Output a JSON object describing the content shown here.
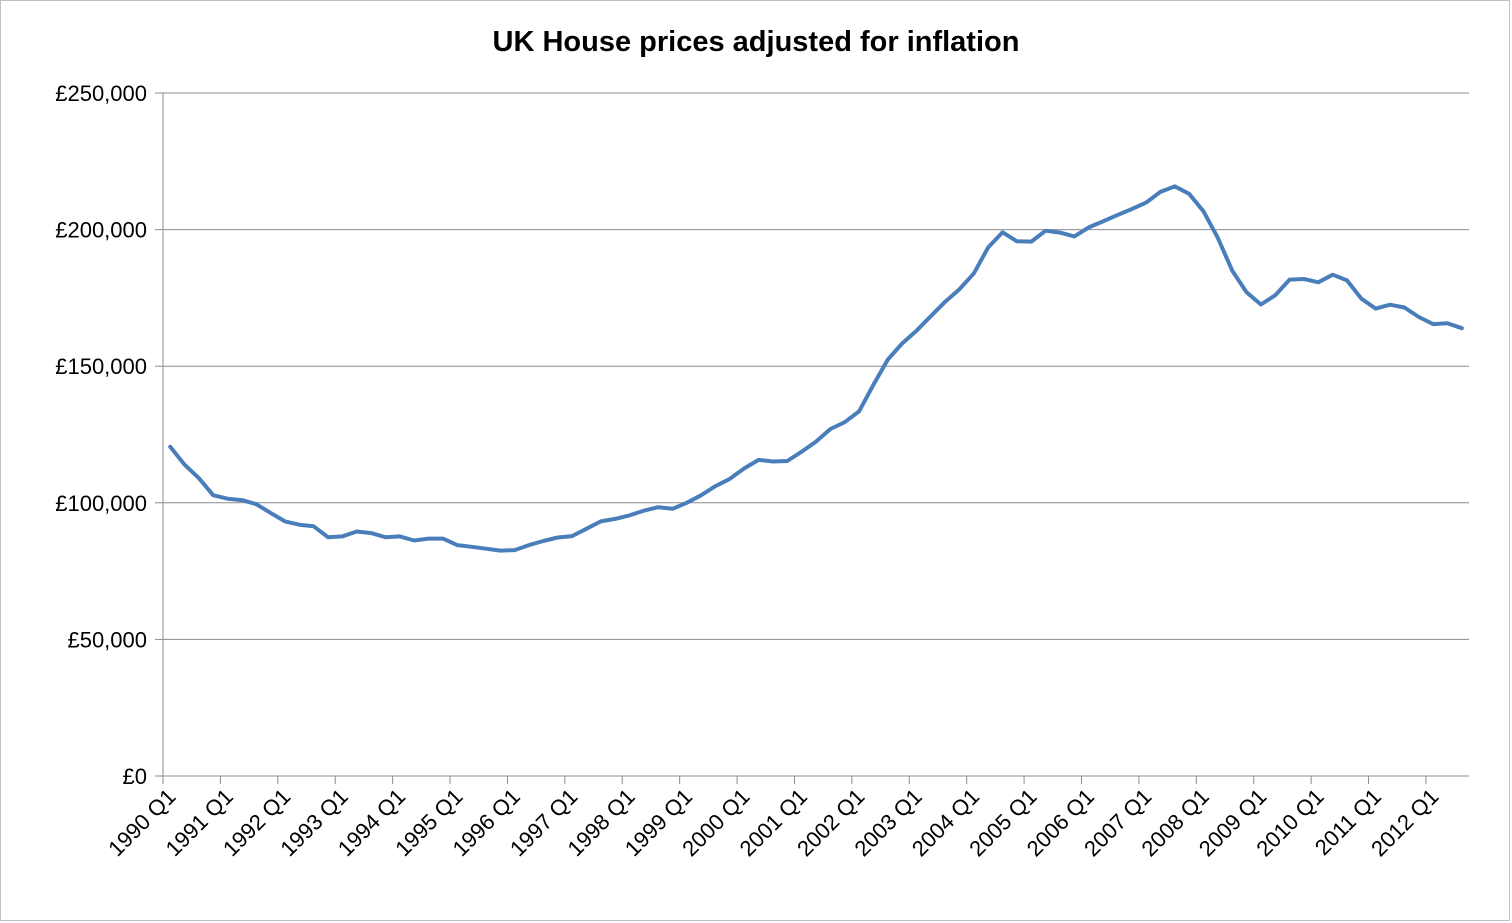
{
  "chart_data": {
    "type": "line",
    "title": "UK House prices adjusted for inflation",
    "xlabel": "",
    "ylabel": "",
    "ylim": [
      0,
      250000
    ],
    "y_ticks": [
      0,
      50000,
      100000,
      150000,
      200000,
      250000
    ],
    "y_tick_labels": [
      "£0",
      "£50,000",
      "£100,000",
      "£150,000",
      "£200,000",
      "£250,000"
    ],
    "x_tick_labels": [
      "1990 Q1",
      "1991 Q1",
      "1992 Q1",
      "1993 Q1",
      "1994 Q1",
      "1995 Q1",
      "1996 Q1",
      "1997 Q1",
      "1998 Q1",
      "1999 Q1",
      "2000 Q1",
      "2001 Q1",
      "2002 Q1",
      "2003 Q1",
      "2004 Q1",
      "2005 Q1",
      "2006 Q1",
      "2007 Q1",
      "2008 Q1",
      "2009 Q1",
      "2010 Q1",
      "2011 Q1",
      "2012 Q1"
    ],
    "grid": "horizontal",
    "legend": "none",
    "series_color": "#4a7ebb",
    "series": [
      {
        "values": [
          120500,
          114000,
          109000,
          102800,
          101500,
          101000,
          99500,
          96300,
          93200,
          92000,
          91400,
          87400,
          87700,
          89500,
          88900,
          87400,
          87700,
          86200,
          86900,
          86900,
          84500,
          83900,
          83200,
          82500,
          82700,
          84500,
          86000,
          87300,
          87800,
          90500,
          93200,
          94100,
          95400,
          97100,
          98400,
          97800,
          100000,
          102800,
          106100,
          108800,
          112600,
          115700,
          115100,
          115300,
          118700,
          122400,
          127000,
          129500,
          133500,
          143200,
          152400,
          158300,
          163000,
          168300,
          173600,
          178200,
          184000,
          193500,
          199000,
          195700,
          195600,
          199600,
          198900,
          197500,
          200800,
          203000,
          205300,
          207500,
          209900,
          213800,
          215800,
          213100,
          206700,
          197000,
          185000,
          177100,
          172600,
          176000,
          181700,
          181900,
          180700,
          183500,
          181400,
          174700,
          171100,
          172500,
          171500,
          168000,
          165400,
          165700,
          163900
        ]
      }
    ]
  }
}
